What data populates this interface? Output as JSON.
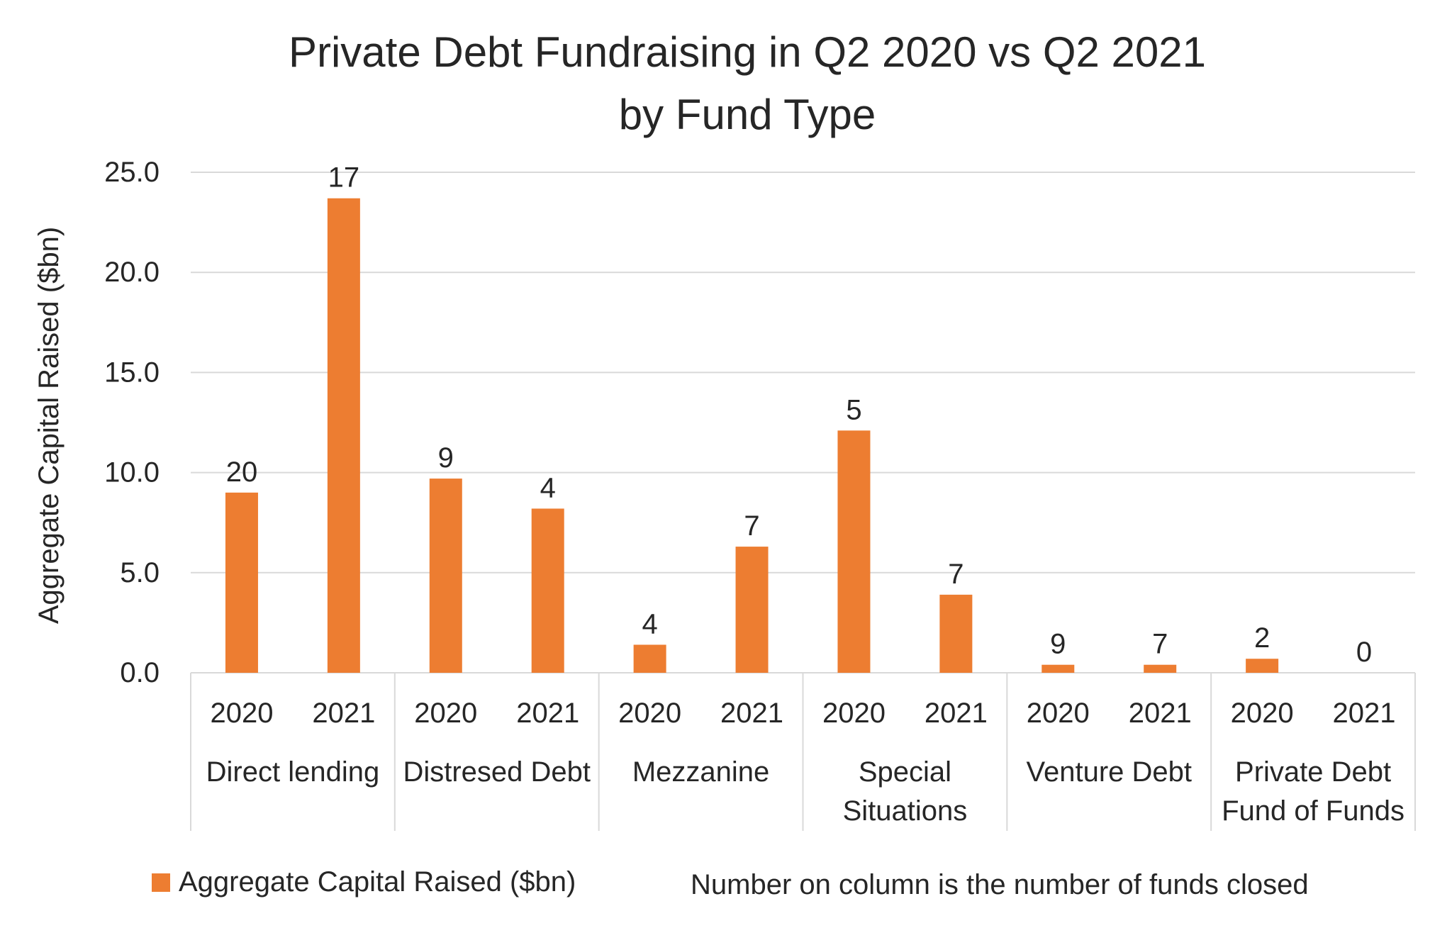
{
  "chart_data": {
    "type": "bar",
    "title": [
      "Private Debt Fundraising in Q2 2020 vs Q2 2021",
      "by Fund Type"
    ],
    "ylabel": "Aggregate Capital Raised ($bn)",
    "xlabel": "",
    "ylim": [
      0,
      25
    ],
    "yticks": [
      "0.0",
      "5.0",
      "10.0",
      "15.0",
      "20.0",
      "25.0"
    ],
    "grid": true,
    "legend_position": "bottom",
    "color": "#ED7D31",
    "groups": [
      {
        "name": [
          "Direct lending"
        ],
        "bars": [
          {
            "year": "2020",
            "value": 9.0,
            "funds": "20"
          },
          {
            "year": "2021",
            "value": 23.7,
            "funds": "17"
          }
        ]
      },
      {
        "name": [
          "Distresed Debt"
        ],
        "bars": [
          {
            "year": "2020",
            "value": 9.7,
            "funds": "9"
          },
          {
            "year": "2021",
            "value": 8.2,
            "funds": "4"
          }
        ]
      },
      {
        "name": [
          "Mezzanine"
        ],
        "bars": [
          {
            "year": "2020",
            "value": 1.4,
            "funds": "4"
          },
          {
            "year": "2021",
            "value": 6.3,
            "funds": "7"
          }
        ]
      },
      {
        "name": [
          "Special",
          "Situations"
        ],
        "bars": [
          {
            "year": "2020",
            "value": 12.1,
            "funds": "5"
          },
          {
            "year": "2021",
            "value": 3.9,
            "funds": "7"
          }
        ]
      },
      {
        "name": [
          "Venture Debt"
        ],
        "bars": [
          {
            "year": "2020",
            "value": 0.4,
            "funds": "9"
          },
          {
            "year": "2021",
            "value": 0.4,
            "funds": "7"
          }
        ]
      },
      {
        "name": [
          "Private Debt",
          "Fund of Funds"
        ],
        "bars": [
          {
            "year": "2020",
            "value": 0.7,
            "funds": "2"
          },
          {
            "year": "2021",
            "value": 0.0,
            "funds": "0"
          }
        ]
      }
    ],
    "legend": {
      "series": "Aggregate Capital Raised ($bn)",
      "note": "Number on column is the number of funds closed"
    }
  }
}
